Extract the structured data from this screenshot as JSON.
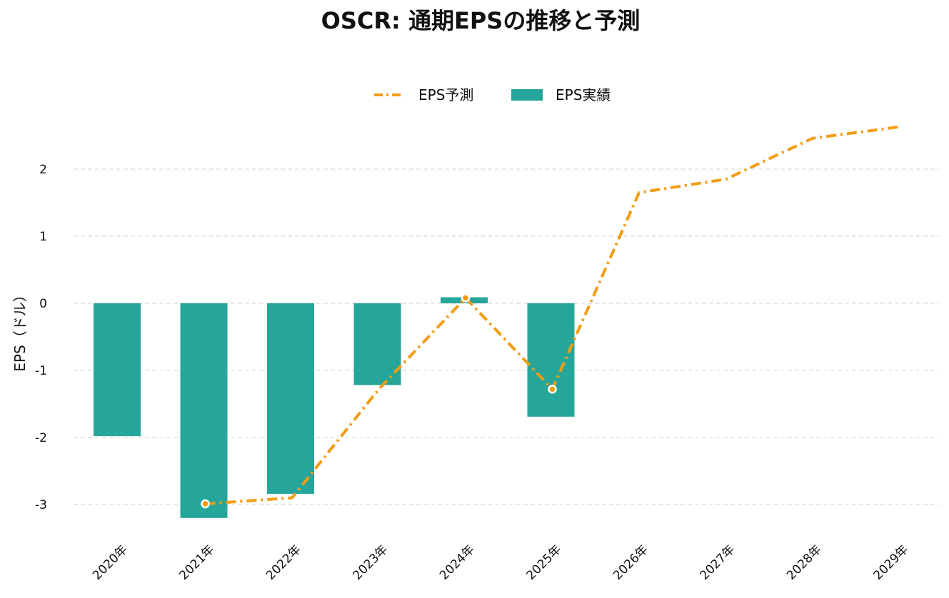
{
  "chart_data": {
    "type": "bar",
    "title": "OSCR: 通期EPSの推移と予測",
    "ylabel": "EPS（ドル）",
    "xlabel": "",
    "categories": [
      "2020年",
      "2021年",
      "2022年",
      "2023年",
      "2024年",
      "2025年",
      "2026年",
      "2027年",
      "2028年",
      "2029年"
    ],
    "ylim": [
      -3.45,
      2.75
    ],
    "yticks": [
      -3,
      -2,
      -1,
      0,
      1,
      2
    ],
    "ytick_labels": [
      "-3",
      "-2",
      "-1",
      "0",
      "1",
      "2"
    ],
    "grid": true,
    "legend_position": "top-center",
    "series": [
      {
        "name": "EPS実績",
        "kind": "bar",
        "color": "#26a69a",
        "values": [
          -1.98,
          -3.2,
          -2.84,
          -1.22,
          0.09,
          -1.69,
          null,
          null,
          null,
          null
        ]
      },
      {
        "name": "EPS予測",
        "kind": "line",
        "style": "dash-dot",
        "color": "#f39c12",
        "values": [
          null,
          -2.99,
          -2.9,
          -1.28,
          0.08,
          -1.28,
          1.65,
          1.85,
          2.46,
          2.63
        ],
        "markers": [
          false,
          true,
          false,
          false,
          true,
          true,
          false,
          false,
          false,
          false
        ]
      }
    ]
  }
}
